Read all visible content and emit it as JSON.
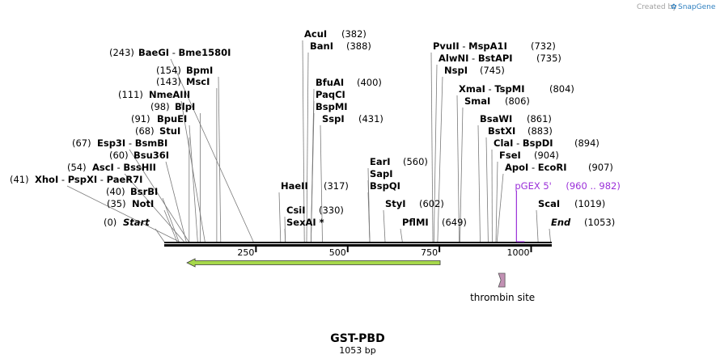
{
  "branding": {
    "created_by": "Created by",
    "app_name": "SnapGene"
  },
  "sequence": {
    "name": "GST-PBD",
    "length_label": "1053 bp",
    "length": 1053
  },
  "axis": {
    "ticks": [
      250,
      500,
      750,
      1000
    ]
  },
  "sites": [
    {
      "enzymes": [
        "BaeGI",
        "Bme1580I"
      ],
      "pos": "(243)",
      "bp": 243
    },
    {
      "enzymes": [
        "BpmI"
      ],
      "pos": "(154)",
      "bp": 154
    },
    {
      "enzymes": [
        "MscI"
      ],
      "pos": "(143)",
      "bp": 143
    },
    {
      "enzymes": [
        "NmeAIII"
      ],
      "pos": "(111)",
      "bp": 111
    },
    {
      "enzymes": [
        "BlpI"
      ],
      "pos": "(98)",
      "bp": 98
    },
    {
      "enzymes": [
        "BpuEI"
      ],
      "pos": "(91)",
      "bp": 91
    },
    {
      "enzymes": [
        "StuI"
      ],
      "pos": "(68)",
      "bp": 68
    },
    {
      "enzymes": [
        "Esp3I",
        "BsmBI"
      ],
      "pos": "(67)",
      "bp": 67
    },
    {
      "enzymes": [
        "Bsu36I"
      ],
      "pos": "(60)",
      "bp": 60
    },
    {
      "enzymes": [
        "AscI",
        "BssHII"
      ],
      "pos": "(54)",
      "bp": 54
    },
    {
      "enzymes": [
        "XhoI",
        "PspXI",
        "PaeR7I"
      ],
      "pos": "(41)",
      "bp": 41
    },
    {
      "enzymes": [
        "BsrBI"
      ],
      "pos": "(40)",
      "bp": 40
    },
    {
      "enzymes": [
        "NotI"
      ],
      "pos": "(35)",
      "bp": 35
    },
    {
      "enzymes": [
        "Start"
      ],
      "pos": "(0)",
      "bp": 0
    },
    {
      "enzymes": [
        "AcuI"
      ],
      "pos": "(382)",
      "bp": 382
    },
    {
      "enzymes": [
        "BanI"
      ],
      "pos": "(388)",
      "bp": 388
    },
    {
      "enzymes": [
        "BfuAI"
      ],
      "pos": "(400)",
      "bp": 400
    },
    {
      "enzymes": [
        "PaqCI"
      ],
      "pos": "",
      "bp": 400
    },
    {
      "enzymes": [
        "BspMI"
      ],
      "pos": "",
      "bp": 400
    },
    {
      "enzymes": [
        "SspI"
      ],
      "pos": "(431)",
      "bp": 431
    },
    {
      "enzymes": [
        "HaeII"
      ],
      "pos": "(317)",
      "bp": 317
    },
    {
      "enzymes": [
        "CsiI"
      ],
      "pos": "(330)",
      "bp": 330
    },
    {
      "enzymes": [
        "SexAI *"
      ],
      "pos": "",
      "bp": 330
    },
    {
      "enzymes": [
        "EarI"
      ],
      "pos": "(560)",
      "bp": 560
    },
    {
      "enzymes": [
        "SapI"
      ],
      "pos": "",
      "bp": 560
    },
    {
      "enzymes": [
        "BspQI"
      ],
      "pos": "",
      "bp": 560
    },
    {
      "enzymes": [
        "StyI"
      ],
      "pos": "(602)",
      "bp": 602
    },
    {
      "enzymes": [
        "PflMI"
      ],
      "pos": "(649)",
      "bp": 649
    },
    {
      "enzymes": [
        "PvuII",
        "MspA1I"
      ],
      "pos": "(732)",
      "bp": 732
    },
    {
      "enzymes": [
        "AlwNI",
        "BstAPI"
      ],
      "pos": "(735)",
      "bp": 735
    },
    {
      "enzymes": [
        "NspI"
      ],
      "pos": "(745)",
      "bp": 745
    },
    {
      "enzymes": [
        "XmaI",
        "TspMI"
      ],
      "pos": "(804)",
      "bp": 804
    },
    {
      "enzymes": [
        "SmaI"
      ],
      "pos": "(806)",
      "bp": 806
    },
    {
      "enzymes": [
        "BsaWI"
      ],
      "pos": "(861)",
      "bp": 861
    },
    {
      "enzymes": [
        "BstXI"
      ],
      "pos": "(883)",
      "bp": 883
    },
    {
      "enzymes": [
        "ClaI",
        "BspDI"
      ],
      "pos": "(894)",
      "bp": 894
    },
    {
      "enzymes": [
        "FseI"
      ],
      "pos": "(904)",
      "bp": 904
    },
    {
      "enzymes": [
        "ApoI",
        "EcoRI"
      ],
      "pos": "(907)",
      "bp": 907
    },
    {
      "enzymes": [
        "ScaI"
      ],
      "pos": "(1019)",
      "bp": 1019
    },
    {
      "enzymes": [
        "End"
      ],
      "pos": "(1053)",
      "bp": 1053
    }
  ],
  "primer": {
    "name": "pGEX 5'",
    "range": "(960 .. 982)",
    "start": 960,
    "end": 982,
    "color": "#9b30d9"
  },
  "features": [
    {
      "name": "",
      "type": "arrow-left",
      "start": 62,
      "end": 752,
      "color": "#a6d84a"
    },
    {
      "name": "thrombin site",
      "type": "site",
      "start": 913,
      "end": 931,
      "color": "#c291b4"
    }
  ]
}
